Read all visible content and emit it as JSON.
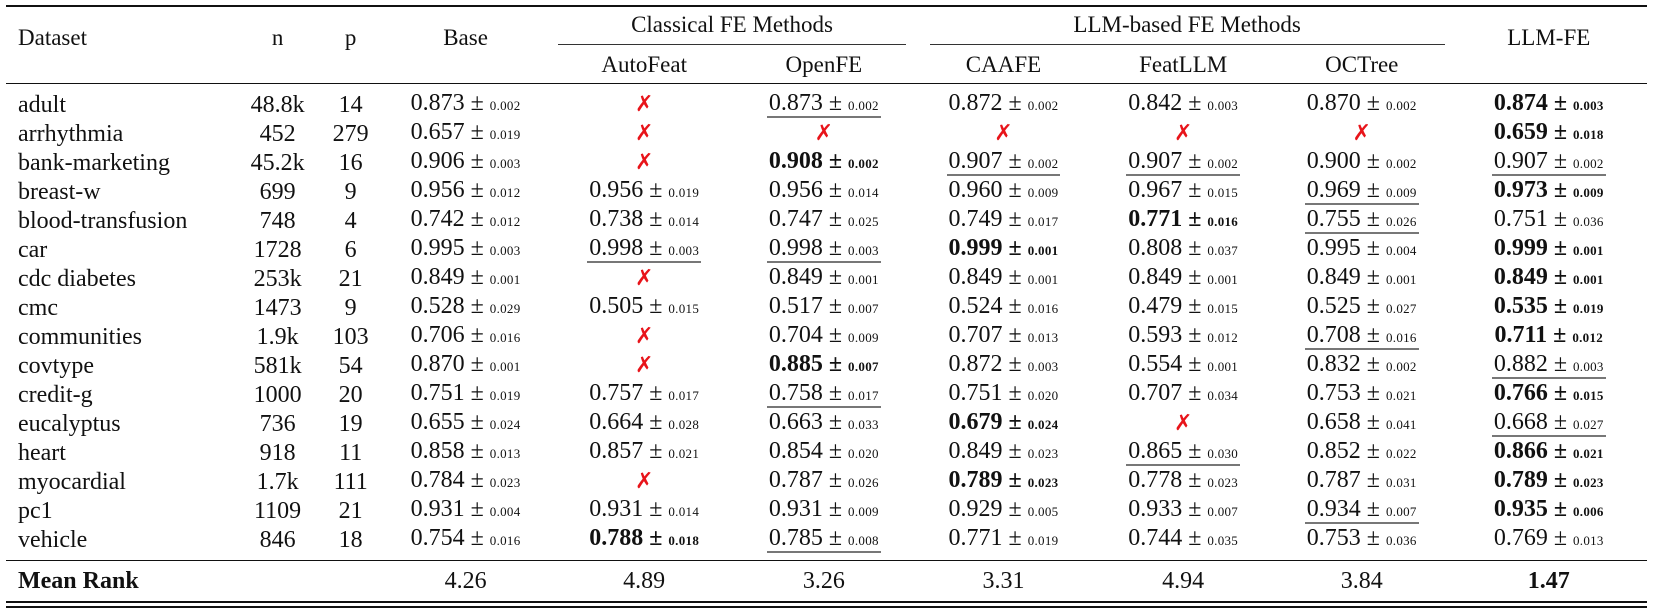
{
  "headers": {
    "dataset": "Dataset",
    "n": "n",
    "p": "p",
    "base": "Base",
    "classical_group": "Classical FE Methods",
    "llm_group": "LLM-based FE Methods",
    "llmfe": "LLM-FE",
    "methods": [
      "AutoFeat",
      "OpenFE",
      "CAAFE",
      "FeatLLM",
      "OCTree"
    ]
  },
  "fail_symbol": "✗",
  "colors": {
    "fail": "#e8141a"
  },
  "rows": [
    {
      "dataset": "adult",
      "n": "48.8k",
      "p": "14",
      "cells": [
        {
          "v": "0.873",
          "s": "0.002"
        },
        null,
        {
          "v": "0.873",
          "s": "0.002",
          "f": "u"
        },
        {
          "v": "0.872",
          "s": "0.002"
        },
        {
          "v": "0.842",
          "s": "0.003"
        },
        {
          "v": "0.870",
          "s": "0.002"
        },
        {
          "v": "0.874",
          "s": "0.003",
          "f": "b"
        }
      ]
    },
    {
      "dataset": "arrhythmia",
      "n": "452",
      "p": "279",
      "cells": [
        {
          "v": "0.657",
          "s": "0.019"
        },
        null,
        null,
        null,
        null,
        null,
        {
          "v": "0.659",
          "s": "0.018",
          "f": "b"
        }
      ]
    },
    {
      "dataset": "bank-marketing",
      "n": "45.2k",
      "p": "16",
      "cells": [
        {
          "v": "0.906",
          "s": "0.003"
        },
        null,
        {
          "v": "0.908",
          "s": "0.002",
          "f": "b"
        },
        {
          "v": "0.907",
          "s": "0.002",
          "f": "u"
        },
        {
          "v": "0.907",
          "s": "0.002",
          "f": "u"
        },
        {
          "v": "0.900",
          "s": "0.002"
        },
        {
          "v": "0.907",
          "s": "0.002",
          "f": "u"
        }
      ]
    },
    {
      "dataset": "breast-w",
      "n": "699",
      "p": "9",
      "cells": [
        {
          "v": "0.956",
          "s": "0.012"
        },
        {
          "v": "0.956",
          "s": "0.019"
        },
        {
          "v": "0.956",
          "s": "0.014"
        },
        {
          "v": "0.960",
          "s": "0.009"
        },
        {
          "v": "0.967",
          "s": "0.015"
        },
        {
          "v": "0.969",
          "s": "0.009",
          "f": "u"
        },
        {
          "v": "0.973",
          "s": "0.009",
          "f": "b"
        }
      ]
    },
    {
      "dataset": "blood-transfusion",
      "n": "748",
      "p": "4",
      "cells": [
        {
          "v": "0.742",
          "s": "0.012"
        },
        {
          "v": "0.738",
          "s": "0.014"
        },
        {
          "v": "0.747",
          "s": "0.025"
        },
        {
          "v": "0.749",
          "s": "0.017"
        },
        {
          "v": "0.771",
          "s": "0.016",
          "f": "b"
        },
        {
          "v": "0.755",
          "s": "0.026",
          "f": "u"
        },
        {
          "v": "0.751",
          "s": "0.036"
        }
      ]
    },
    {
      "dataset": "car",
      "n": "1728",
      "p": "6",
      "cells": [
        {
          "v": "0.995",
          "s": "0.003"
        },
        {
          "v": "0.998",
          "s": "0.003",
          "f": "u"
        },
        {
          "v": "0.998",
          "s": "0.003",
          "f": "u"
        },
        {
          "v": "0.999",
          "s": "0.001",
          "f": "b"
        },
        {
          "v": "0.808",
          "s": "0.037"
        },
        {
          "v": "0.995",
          "s": "0.004"
        },
        {
          "v": "0.999",
          "s": "0.001",
          "f": "b"
        }
      ]
    },
    {
      "dataset": "cdc diabetes",
      "n": "253k",
      "p": "21",
      "cells": [
        {
          "v": "0.849",
          "s": "0.001"
        },
        null,
        {
          "v": "0.849",
          "s": "0.001"
        },
        {
          "v": "0.849",
          "s": "0.001"
        },
        {
          "v": "0.849",
          "s": "0.001"
        },
        {
          "v": "0.849",
          "s": "0.001"
        },
        {
          "v": "0.849",
          "s": "0.001",
          "f": "b"
        }
      ]
    },
    {
      "dataset": "cmc",
      "n": "1473",
      "p": "9",
      "cells": [
        {
          "v": "0.528",
          "s": "0.029"
        },
        {
          "v": "0.505",
          "s": "0.015"
        },
        {
          "v": "0.517",
          "s": "0.007"
        },
        {
          "v": "0.524",
          "s": "0.016"
        },
        {
          "v": "0.479",
          "s": "0.015"
        },
        {
          "v": "0.525",
          "s": "0.027"
        },
        {
          "v": "0.535",
          "s": "0.019",
          "f": "b"
        }
      ]
    },
    {
      "dataset": "communities",
      "n": "1.9k",
      "p": "103",
      "cells": [
        {
          "v": "0.706",
          "s": "0.016"
        },
        null,
        {
          "v": "0.704",
          "s": "0.009"
        },
        {
          "v": "0.707",
          "s": "0.013"
        },
        {
          "v": "0.593",
          "s": "0.012"
        },
        {
          "v": "0.708",
          "s": "0.016",
          "f": "u"
        },
        {
          "v": "0.711",
          "s": "0.012",
          "f": "b"
        }
      ]
    },
    {
      "dataset": "covtype",
      "n": "581k",
      "p": "54",
      "cells": [
        {
          "v": "0.870",
          "s": "0.001"
        },
        null,
        {
          "v": "0.885",
          "s": "0.007",
          "f": "b"
        },
        {
          "v": "0.872",
          "s": "0.003"
        },
        {
          "v": "0.554",
          "s": "0.001"
        },
        {
          "v": "0.832",
          "s": "0.002"
        },
        {
          "v": "0.882",
          "s": "0.003",
          "f": "u"
        }
      ]
    },
    {
      "dataset": "credit-g",
      "n": "1000",
      "p": "20",
      "cells": [
        {
          "v": "0.751",
          "s": "0.019"
        },
        {
          "v": "0.757",
          "s": "0.017"
        },
        {
          "v": "0.758",
          "s": "0.017",
          "f": "u"
        },
        {
          "v": "0.751",
          "s": "0.020"
        },
        {
          "v": "0.707",
          "s": "0.034"
        },
        {
          "v": "0.753",
          "s": "0.021"
        },
        {
          "v": "0.766",
          "s": "0.015",
          "f": "b"
        }
      ]
    },
    {
      "dataset": "eucalyptus",
      "n": "736",
      "p": "19",
      "cells": [
        {
          "v": "0.655",
          "s": "0.024"
        },
        {
          "v": "0.664",
          "s": "0.028"
        },
        {
          "v": "0.663",
          "s": "0.033"
        },
        {
          "v": "0.679",
          "s": "0.024",
          "f": "b"
        },
        null,
        {
          "v": "0.658",
          "s": "0.041"
        },
        {
          "v": "0.668",
          "s": "0.027",
          "f": "u"
        }
      ]
    },
    {
      "dataset": "heart",
      "n": "918",
      "p": "11",
      "cells": [
        {
          "v": "0.858",
          "s": "0.013"
        },
        {
          "v": "0.857",
          "s": "0.021"
        },
        {
          "v": "0.854",
          "s": "0.020"
        },
        {
          "v": "0.849",
          "s": "0.023"
        },
        {
          "v": "0.865",
          "s": "0.030",
          "f": "u"
        },
        {
          "v": "0.852",
          "s": "0.022"
        },
        {
          "v": "0.866",
          "s": "0.021",
          "f": "b"
        }
      ]
    },
    {
      "dataset": "myocardial",
      "n": "1.7k",
      "p": "111",
      "cells": [
        {
          "v": "0.784",
          "s": "0.023"
        },
        null,
        {
          "v": "0.787",
          "s": "0.026"
        },
        {
          "v": "0.789",
          "s": "0.023",
          "f": "b"
        },
        {
          "v": "0.778",
          "s": "0.023"
        },
        {
          "v": "0.787",
          "s": "0.031"
        },
        {
          "v": "0.789",
          "s": "0.023",
          "f": "b"
        }
      ]
    },
    {
      "dataset": "pc1",
      "n": "1109",
      "p": "21",
      "cells": [
        {
          "v": "0.931",
          "s": "0.004"
        },
        {
          "v": "0.931",
          "s": "0.014"
        },
        {
          "v": "0.931",
          "s": "0.009"
        },
        {
          "v": "0.929",
          "s": "0.005"
        },
        {
          "v": "0.933",
          "s": "0.007"
        },
        {
          "v": "0.934",
          "s": "0.007",
          "f": "u"
        },
        {
          "v": "0.935",
          "s": "0.006",
          "f": "b"
        }
      ]
    },
    {
      "dataset": "vehicle",
      "n": "846",
      "p": "18",
      "cells": [
        {
          "v": "0.754",
          "s": "0.016"
        },
        {
          "v": "0.788",
          "s": "0.018",
          "f": "b"
        },
        {
          "v": "0.785",
          "s": "0.008",
          "f": "u"
        },
        {
          "v": "0.771",
          "s": "0.019"
        },
        {
          "v": "0.744",
          "s": "0.035"
        },
        {
          "v": "0.753",
          "s": "0.036"
        },
        {
          "v": "0.769",
          "s": "0.013"
        }
      ]
    }
  ],
  "mean_rank": {
    "label": "Mean Rank",
    "values": [
      "4.26",
      "4.89",
      "3.26",
      "3.31",
      "4.94",
      "3.84",
      "1.47"
    ],
    "best_index": 6
  }
}
